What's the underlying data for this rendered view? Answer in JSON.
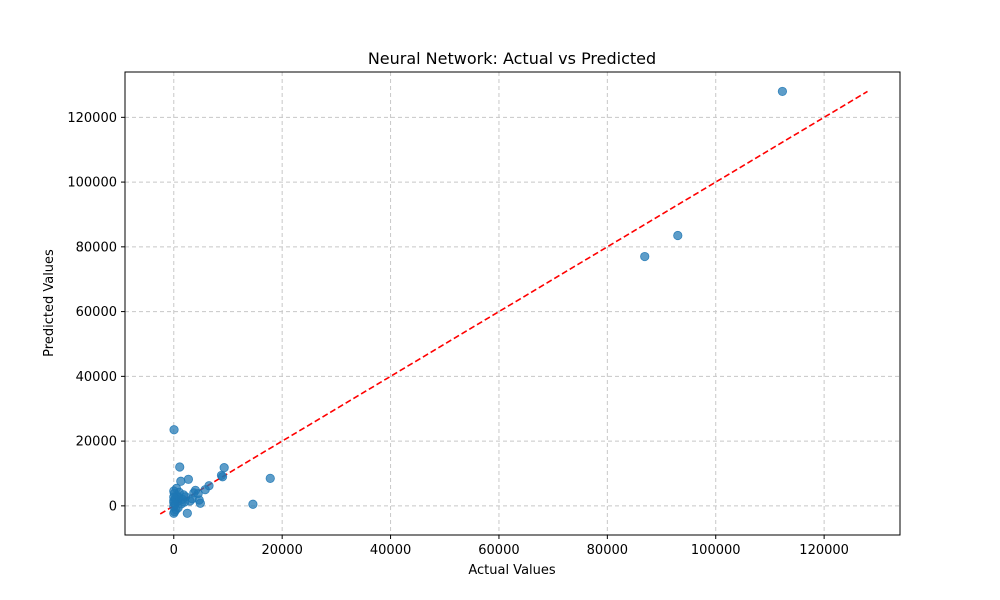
{
  "chart_data": {
    "type": "scatter",
    "title": "Neural Network: Actual vs Predicted",
    "xlabel": "Actual Values",
    "ylabel": "Predicted Values",
    "xlim": [
      -9000,
      134000
    ],
    "ylim": [
      -9000,
      134000
    ],
    "xticks": [
      0,
      20000,
      40000,
      60000,
      80000,
      100000,
      120000
    ],
    "yticks": [
      0,
      20000,
      40000,
      60000,
      80000,
      100000,
      120000
    ],
    "grid": true,
    "reference_line": {
      "x": [
        -2500,
        128000
      ],
      "y": [
        -2500,
        128000
      ],
      "color": "#ff0000",
      "style": "dashed"
    },
    "marker_color": "#1f77b4",
    "points": [
      [
        112300,
        128000
      ],
      [
        93000,
        83500
      ],
      [
        86900,
        77000
      ],
      [
        17800,
        8500
      ],
      [
        14600,
        500
      ],
      [
        9300,
        11800
      ],
      [
        9000,
        9000
      ],
      [
        8800,
        9400
      ],
      [
        6500,
        6200
      ],
      [
        5800,
        5000
      ],
      [
        4900,
        800
      ],
      [
        4700,
        1800
      ],
      [
        4500,
        3800
      ],
      [
        4000,
        4800
      ],
      [
        3700,
        4000
      ],
      [
        3400,
        2200
      ],
      [
        3000,
        1500
      ],
      [
        2700,
        8200
      ],
      [
        2500,
        -2300
      ],
      [
        2200,
        2800
      ],
      [
        2000,
        1200
      ],
      [
        1800,
        3400
      ],
      [
        1600,
        2000
      ],
      [
        1400,
        600
      ],
      [
        1300,
        7600
      ],
      [
        1100,
        12000
      ],
      [
        1000,
        4200
      ],
      [
        900,
        2600
      ],
      [
        800,
        -600
      ],
      [
        700,
        1400
      ],
      [
        600,
        3100
      ],
      [
        500,
        5400
      ],
      [
        400,
        -1200
      ],
      [
        300,
        2200
      ],
      [
        200,
        500
      ],
      [
        150,
        -1800
      ],
      [
        100,
        3800
      ],
      [
        50,
        23500
      ],
      [
        0,
        4600
      ],
      [
        0,
        1600
      ],
      [
        0,
        -200
      ],
      [
        0,
        -2300
      ],
      [
        0,
        2700
      ],
      [
        0,
        1000
      ]
    ]
  }
}
